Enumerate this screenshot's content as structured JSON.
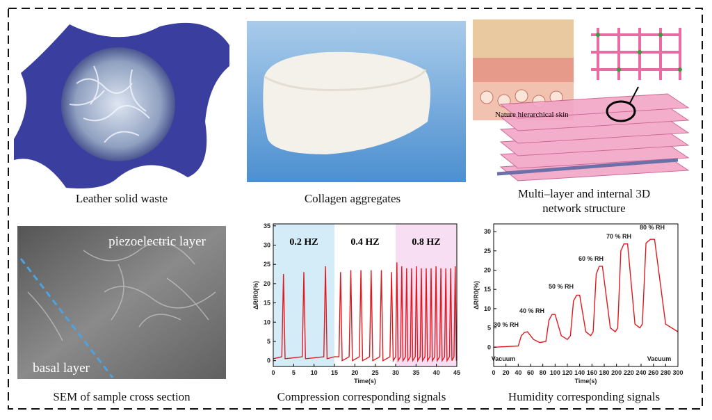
{
  "panels": [
    {
      "caption": [
        "Leather solid waste"
      ]
    },
    {
      "caption": [
        "Collagen aggregates"
      ]
    },
    {
      "caption": [
        "Multi–layer and internal 3D",
        "network structure"
      ],
      "inset_label": "Nature hierarchical skin"
    },
    {
      "caption": [
        "SEM of sample cross section"
      ],
      "labels": [
        "piezoelectric layer",
        "basal layer"
      ]
    },
    {
      "caption": [
        "Compression corresponding signals"
      ]
    },
    {
      "caption": [
        "Humidity corresponding signals"
      ]
    }
  ],
  "chart_data": [
    {
      "type": "line",
      "xlabel": "Time(s)",
      "ylabel": "ΔR/R0(%)",
      "xlim": [
        0,
        45
      ],
      "ylim": [
        -1.5,
        35.5
      ],
      "xticks": [
        0,
        5,
        10,
        15,
        20,
        25,
        30,
        35,
        40,
        45
      ],
      "yticks": [
        0,
        5,
        10,
        15,
        20,
        25,
        30,
        35
      ],
      "regions": [
        {
          "label": "0.2 HZ",
          "start": 0,
          "end": 15,
          "color": "#d4ecf8"
        },
        {
          "label": "0.4 HZ",
          "start": 15,
          "end": 30,
          "color": "#ffffff"
        },
        {
          "label": "0.8 HZ",
          "start": 30,
          "end": 45,
          "color": "#f8def2"
        }
      ],
      "series": [
        {
          "color": "#e0191e",
          "x": [
            0,
            2.1,
            2.5,
            2.9,
            7.1,
            7.5,
            7.9,
            12.4,
            12.8,
            13.2,
            15,
            16.1,
            16.5,
            16.9,
            18.6,
            19,
            19.4,
            21.1,
            21.5,
            21.9,
            23.6,
            24,
            24.4,
            26.1,
            26.5,
            26.9,
            28.6,
            29,
            29.4,
            30.0,
            30.3,
            30.6,
            31.2,
            31.5,
            31.8,
            32.4,
            32.7,
            33.0,
            33.6,
            33.9,
            34.2,
            34.8,
            35.1,
            35.4,
            36.0,
            36.3,
            36.6,
            37.2,
            37.5,
            37.8,
            38.4,
            38.7,
            39.0,
            39.6,
            39.9,
            40.2,
            40.8,
            41.1,
            41.4,
            42.0,
            42.3,
            42.6,
            43.2,
            43.5,
            43.8,
            44.3,
            44.6,
            44.9
          ],
          "values": [
            0.5,
            1,
            22.5,
            0.5,
            1,
            23,
            0.5,
            1,
            24.5,
            0.5,
            1,
            1,
            23,
            0,
            1,
            23.5,
            0,
            1,
            23.5,
            0,
            1,
            23.5,
            0,
            1,
            23.5,
            0,
            1,
            23,
            0,
            1,
            25.5,
            0,
            1,
            24.5,
            0,
            1,
            24,
            0,
            1,
            24,
            0,
            1,
            24.5,
            0,
            1,
            24,
            0,
            1,
            24,
            0,
            1,
            24,
            0,
            1,
            24.5,
            0,
            1,
            24,
            0,
            1,
            24,
            0,
            1,
            24,
            0,
            1,
            24.5,
            0
          ]
        }
      ]
    },
    {
      "type": "line",
      "xlabel": "Time(s)",
      "ylabel": "ΔR/R0(%)",
      "xlim": [
        0,
        300
      ],
      "ylim": [
        -5,
        32
      ],
      "xticks": [
        0,
        20,
        40,
        60,
        80,
        100,
        120,
        140,
        160,
        180,
        200,
        220,
        240,
        260,
        280,
        300
      ],
      "yticks": [
        0,
        5,
        10,
        15,
        20,
        25,
        30
      ],
      "annotations": [
        "30 % RH",
        "40 % RH",
        "50 % RH",
        "60 % RH",
        "70 % RH",
        "80 % RH",
        "Vacuum",
        "Vacuum"
      ],
      "series": [
        {
          "color": "#e0191e",
          "x": [
            0,
            40,
            45,
            50,
            55,
            65,
            75,
            85,
            90,
            95,
            100,
            110,
            120,
            125,
            130,
            135,
            140,
            150,
            158,
            162,
            167,
            172,
            177,
            190,
            198,
            202,
            207,
            212,
            218,
            230,
            238,
            242,
            248,
            255,
            262,
            280,
            300
          ],
          "values": [
            0,
            0.3,
            3,
            3.8,
            4,
            2,
            1.2,
            1.5,
            7,
            8.5,
            8.5,
            3,
            2,
            3,
            12,
            13.5,
            13.5,
            4,
            3,
            4,
            19,
            21,
            21,
            5,
            4,
            5,
            25,
            26.8,
            26.8,
            6,
            5,
            6,
            27,
            28,
            28,
            6,
            4
          ]
        }
      ]
    }
  ]
}
